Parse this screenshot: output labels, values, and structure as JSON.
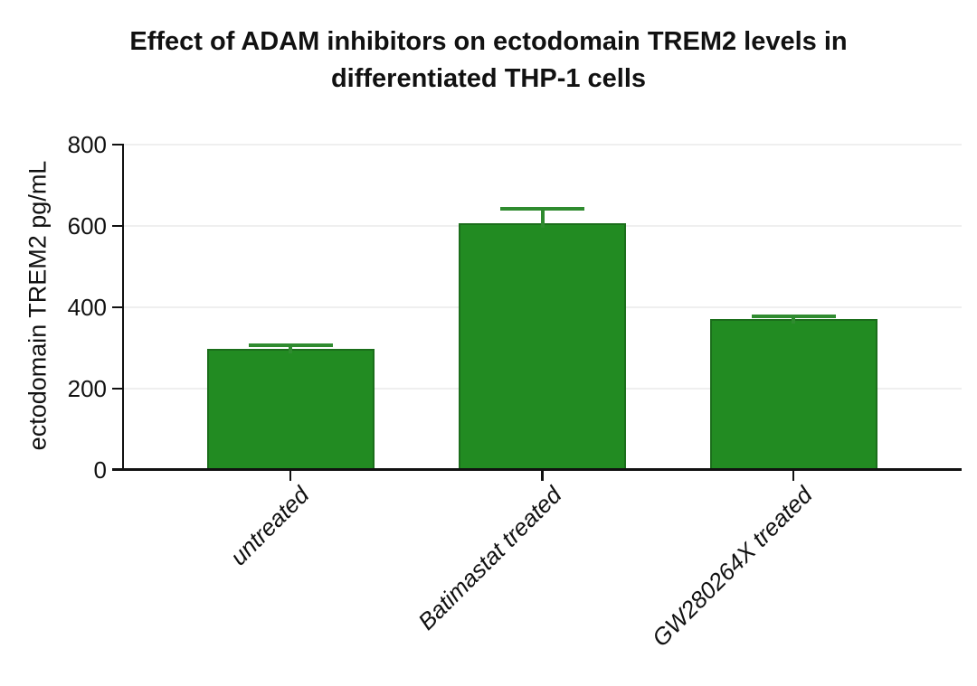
{
  "chart_data": {
    "type": "bar",
    "title": "Effect of ADAM inhibitors on ectodomain TREM2 levels in differentiated THP-1 cells",
    "xlabel": "",
    "ylabel": "ectodomain TREM2 pg/mL",
    "categories": [
      "untreated",
      "Batimastat treated",
      "GW280264X treated"
    ],
    "values": [
      297,
      607,
      370
    ],
    "errors_plus": [
      8,
      34,
      8
    ],
    "yticks": [
      0,
      200,
      400,
      600,
      800
    ],
    "ylim": [
      0,
      800
    ],
    "grid": "horizontal",
    "legend": false,
    "bar_orientation": "vertical",
    "x_tick_label_rotation_deg": 45,
    "x_tick_label_style": "italic",
    "colors": {
      "bar_fill": "#228B22",
      "bar_edge": "#1b6e1b",
      "error_bar": "#2f8b2f",
      "grid": "#efefef",
      "axis": "#111111",
      "text": "#111111",
      "background": "#ffffff"
    }
  }
}
